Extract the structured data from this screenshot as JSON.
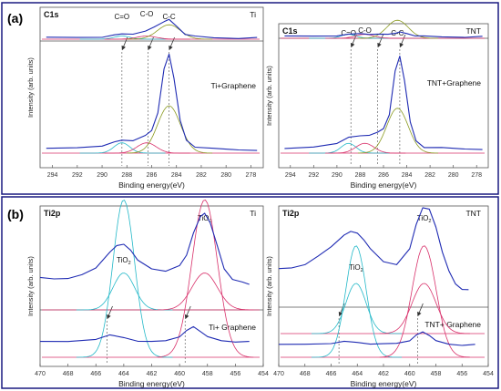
{
  "panels": [
    {
      "label": "(a)"
    },
    {
      "label": "(b)"
    }
  ],
  "chart_data": [
    {
      "type": "line",
      "spectrum": "C1s",
      "sample": "Ti",
      "treated_sample": "Ti+Graphene",
      "xlabel": "Binding energy(eV)",
      "ylabel": "Intensity (arb. units)",
      "xlim": [
        295,
        277
      ],
      "x_reversed": true,
      "xticks": [
        "294",
        "292",
        "290",
        "288",
        "286",
        "284",
        "282",
        "280",
        "278"
      ],
      "peak_labels": [
        {
          "text": "C=O",
          "x": 288.4
        },
        {
          "text": "C-O",
          "x": 286.4
        },
        {
          "text": "C-C",
          "x": 284.6
        }
      ],
      "guides": [
        288.4,
        286.3,
        284.6
      ],
      "series": [
        {
          "name": "Ti",
          "color": "#1f2bb3",
          "x": [
            294.5,
            292,
            290,
            289,
            288.4,
            287.5,
            286.5,
            285.8,
            285,
            284.6,
            284,
            283.3,
            282.5,
            281,
            279,
            277.5
          ],
          "y": [
            0.05,
            0.06,
            0.08,
            0.13,
            0.18,
            0.19,
            0.26,
            0.42,
            0.62,
            0.66,
            0.45,
            0.18,
            0.09,
            0.05,
            0.04,
            0.04
          ]
        },
        {
          "name": "Ti+Graphene",
          "color": "#1f2bb3",
          "x": [
            294.5,
            292,
            290,
            289,
            288.4,
            287.5,
            286.5,
            286,
            285.5,
            285,
            284.6,
            284.2,
            283.7,
            283.2,
            282.5,
            281,
            279,
            277.5
          ],
          "y": [
            0.04,
            0.05,
            0.07,
            0.1,
            0.12,
            0.12,
            0.16,
            0.21,
            0.38,
            0.78,
            0.92,
            0.7,
            0.3,
            0.12,
            0.06,
            0.04,
            0.03,
            0.03
          ]
        }
      ]
    },
    {
      "type": "line",
      "spectrum": "C1s",
      "sample": "TNT",
      "treated_sample": "TNT+Graphene",
      "xlabel": "Binding energy(eV)",
      "ylabel": "Intensity (arb. units)",
      "xlim": [
        295,
        277
      ],
      "x_reversed": true,
      "xticks": [
        "294",
        "292",
        "290",
        "288",
        "286",
        "284",
        "282",
        "280",
        "278"
      ],
      "peak_labels": [
        {
          "text": "C=O",
          "x": 289.0
        },
        {
          "text": "C-O",
          "x": 287.6
        },
        {
          "text": "C-C",
          "x": 284.8
        }
      ],
      "guides": [
        288.8,
        286.5,
        284.6
      ],
      "series": [
        {
          "name": "TNT",
          "color": "#1f2bb3",
          "x": [
            294.5,
            292,
            290,
            289,
            288,
            287.2,
            286.5,
            285.6,
            285,
            284.6,
            284,
            283.3,
            282.5,
            281,
            279,
            277.5
          ],
          "y": [
            0.05,
            0.06,
            0.08,
            0.1,
            0.13,
            0.12,
            0.1,
            0.11,
            0.15,
            0.16,
            0.13,
            0.08,
            0.05,
            0.04,
            0.04,
            0.04
          ]
        },
        {
          "name": "TNT+Graphene",
          "color": "#1f2bb3",
          "x": [
            294.5,
            292,
            290,
            289,
            288,
            287.2,
            286.5,
            286,
            285.5,
            285,
            284.6,
            284.2,
            283.7,
            283.2,
            282.5,
            281,
            279,
            277.5
          ],
          "y": [
            0.04,
            0.06,
            0.1,
            0.15,
            0.17,
            0.18,
            0.2,
            0.24,
            0.38,
            0.8,
            0.95,
            0.72,
            0.3,
            0.12,
            0.06,
            0.05,
            0.04,
            0.04
          ]
        }
      ]
    },
    {
      "type": "line",
      "spectrum": "Ti2p",
      "sample": "Ti",
      "treated_sample": "Ti+ Graphene",
      "xlabel": "Binding energy(eV)",
      "ylabel": "Intensity (arb. units)",
      "xlim": [
        470,
        454
      ],
      "x_reversed": true,
      "xticks": [
        "470",
        "468",
        "466",
        "464",
        "462",
        "460",
        "458",
        "456",
        "454"
      ],
      "peak_labels": [
        {
          "text": "TiO",
          "subscript": "2",
          "x": 464.0
        },
        {
          "text": "TiO",
          "subscript": "2",
          "x": 458.2
        }
      ],
      "guides": [
        465.2,
        459.6
      ],
      "series": [
        {
          "name": "Ti",
          "color": "#1f2bb3",
          "x": [
            470,
            469,
            468,
            467,
            466,
            465,
            464.5,
            464,
            463.5,
            463,
            462,
            461,
            460,
            459.5,
            459,
            458.5,
            458.2,
            457.8,
            457.3,
            456.8,
            456.2,
            455.5,
            455
          ],
          "y": [
            0.35,
            0.34,
            0.35,
            0.38,
            0.46,
            0.64,
            0.7,
            0.72,
            0.66,
            0.54,
            0.45,
            0.43,
            0.48,
            0.6,
            0.85,
            1.02,
            1.06,
            0.96,
            0.7,
            0.45,
            0.34,
            0.3,
            0.28
          ]
        },
        {
          "name": "Ti+ Graphene",
          "color": "#1f2bb3",
          "x": [
            470,
            468,
            466,
            465,
            464,
            463,
            462,
            461,
            460,
            459.5,
            459,
            458.5,
            458,
            457,
            456,
            455
          ],
          "y": [
            0.035,
            0.036,
            0.042,
            0.05,
            0.045,
            0.038,
            0.035,
            0.038,
            0.048,
            0.06,
            0.07,
            0.06,
            0.046,
            0.038,
            0.036,
            0.035
          ]
        }
      ]
    },
    {
      "type": "line",
      "spectrum": "Ti2p",
      "sample": "TNT",
      "treated_sample": "TNT+ Graphene",
      "xlabel": "Binding energy(eV)",
      "ylabel": "Intensity (arb. units)",
      "xlim": [
        470,
        454
      ],
      "x_reversed": true,
      "xticks": [
        "470",
        "468",
        "466",
        "464",
        "462",
        "460",
        "458",
        "456",
        "454"
      ],
      "peak_labels": [
        {
          "text": "TiO",
          "subscript": "2",
          "x": 464.1
        },
        {
          "text": "TiO",
          "subscript": "2",
          "x": 458.9
        }
      ],
      "guides": [
        465.4,
        459.4
      ],
      "series": [
        {
          "name": "TNT",
          "color": "#1f2bb3",
          "x": [
            470,
            469,
            468,
            467,
            466,
            465,
            464.5,
            464,
            463.5,
            463,
            462,
            461,
            460,
            459.5,
            459,
            458.5,
            458,
            457.5,
            457,
            456.5,
            456,
            455.5
          ],
          "y": [
            0.52,
            0.53,
            0.56,
            0.62,
            0.7,
            0.8,
            0.82,
            0.81,
            0.76,
            0.68,
            0.58,
            0.56,
            0.68,
            0.88,
            1.02,
            1.0,
            0.86,
            0.66,
            0.5,
            0.4,
            0.36,
            0.35
          ]
        },
        {
          "name": "TNT+ Graphene",
          "color": "#1f2bb3",
          "x": [
            470,
            468,
            466,
            465,
            464,
            463,
            462,
            461,
            460,
            459.5,
            459,
            458.5,
            458,
            457,
            456,
            455
          ],
          "y": [
            0.04,
            0.042,
            0.046,
            0.05,
            0.048,
            0.044,
            0.042,
            0.045,
            0.055,
            0.07,
            0.082,
            0.072,
            0.052,
            0.042,
            0.04,
            0.04
          ]
        }
      ]
    }
  ]
}
